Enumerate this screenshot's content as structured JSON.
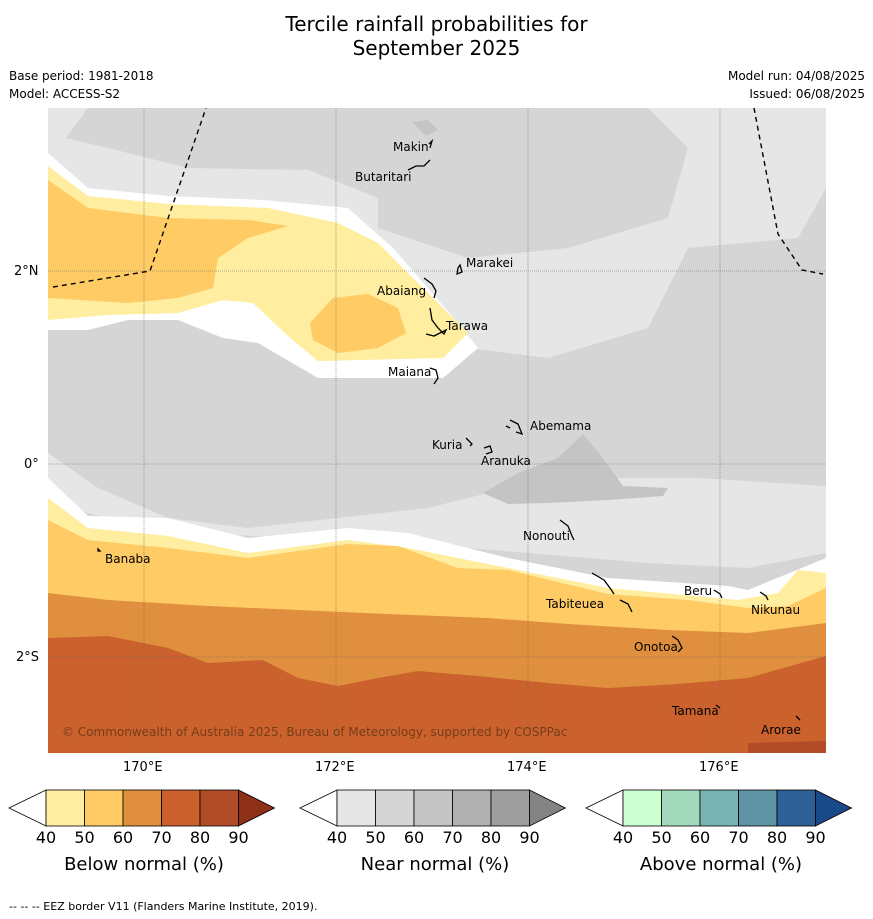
{
  "title_line1": "Tercile rainfall probabilities for",
  "title_line2": "September 2025",
  "meta_left": [
    "Base period: 1981-2018",
    "Model: ACCESS-S2"
  ],
  "meta_right": [
    "Model run: 04/08/2025",
    "Issued: 06/08/2025"
  ],
  "map": {
    "lat_labels": [
      "2°N",
      "0°",
      "2°S"
    ],
    "lon_labels": [
      "170°E",
      "172°E",
      "174°E",
      "176°E"
    ],
    "copyright": "© Commonwealth of Australia 2025, Bureau of Meteorology, supported by COSPPac",
    "islands": [
      "Makin",
      "Butaritari",
      "Marakei",
      "Abaiang",
      "Tarawa",
      "Maiana",
      "Abemama",
      "Kuria",
      "Aranuka",
      "Nonouti",
      "Banaba",
      "Beru",
      "Tabiteuea",
      "Nikunau",
      "Onotoa",
      "Tamana",
      "Arorae"
    ]
  },
  "colorbars": [
    {
      "title": "Below normal (%)",
      "ticks": [
        "40",
        "50",
        "60",
        "70",
        "80",
        "90"
      ],
      "colors": [
        "#ffeda0",
        "#fecb65",
        "#e08f3e",
        "#cb622e",
        "#b14b28",
        "#8e3018"
      ]
    },
    {
      "title": "Near normal (%)",
      "ticks": [
        "40",
        "50",
        "60",
        "70",
        "80",
        "90"
      ],
      "colors": [
        "#e6e6e6",
        "#d5d5d5",
        "#c4c4c4",
        "#b0b0b0",
        "#9e9e9e",
        "#838383"
      ]
    },
    {
      "title": "Above normal (%)",
      "ticks": [
        "40",
        "50",
        "60",
        "70",
        "80",
        "90"
      ],
      "colors": [
        "#ccffd2",
        "#a3d9bc",
        "#79b3b2",
        "#5d93a3",
        "#2e6098",
        "#1b4a88"
      ]
    }
  ],
  "footnote": "--  --  -- EEZ border V11 (Flanders Marine Institute, 2019)."
}
